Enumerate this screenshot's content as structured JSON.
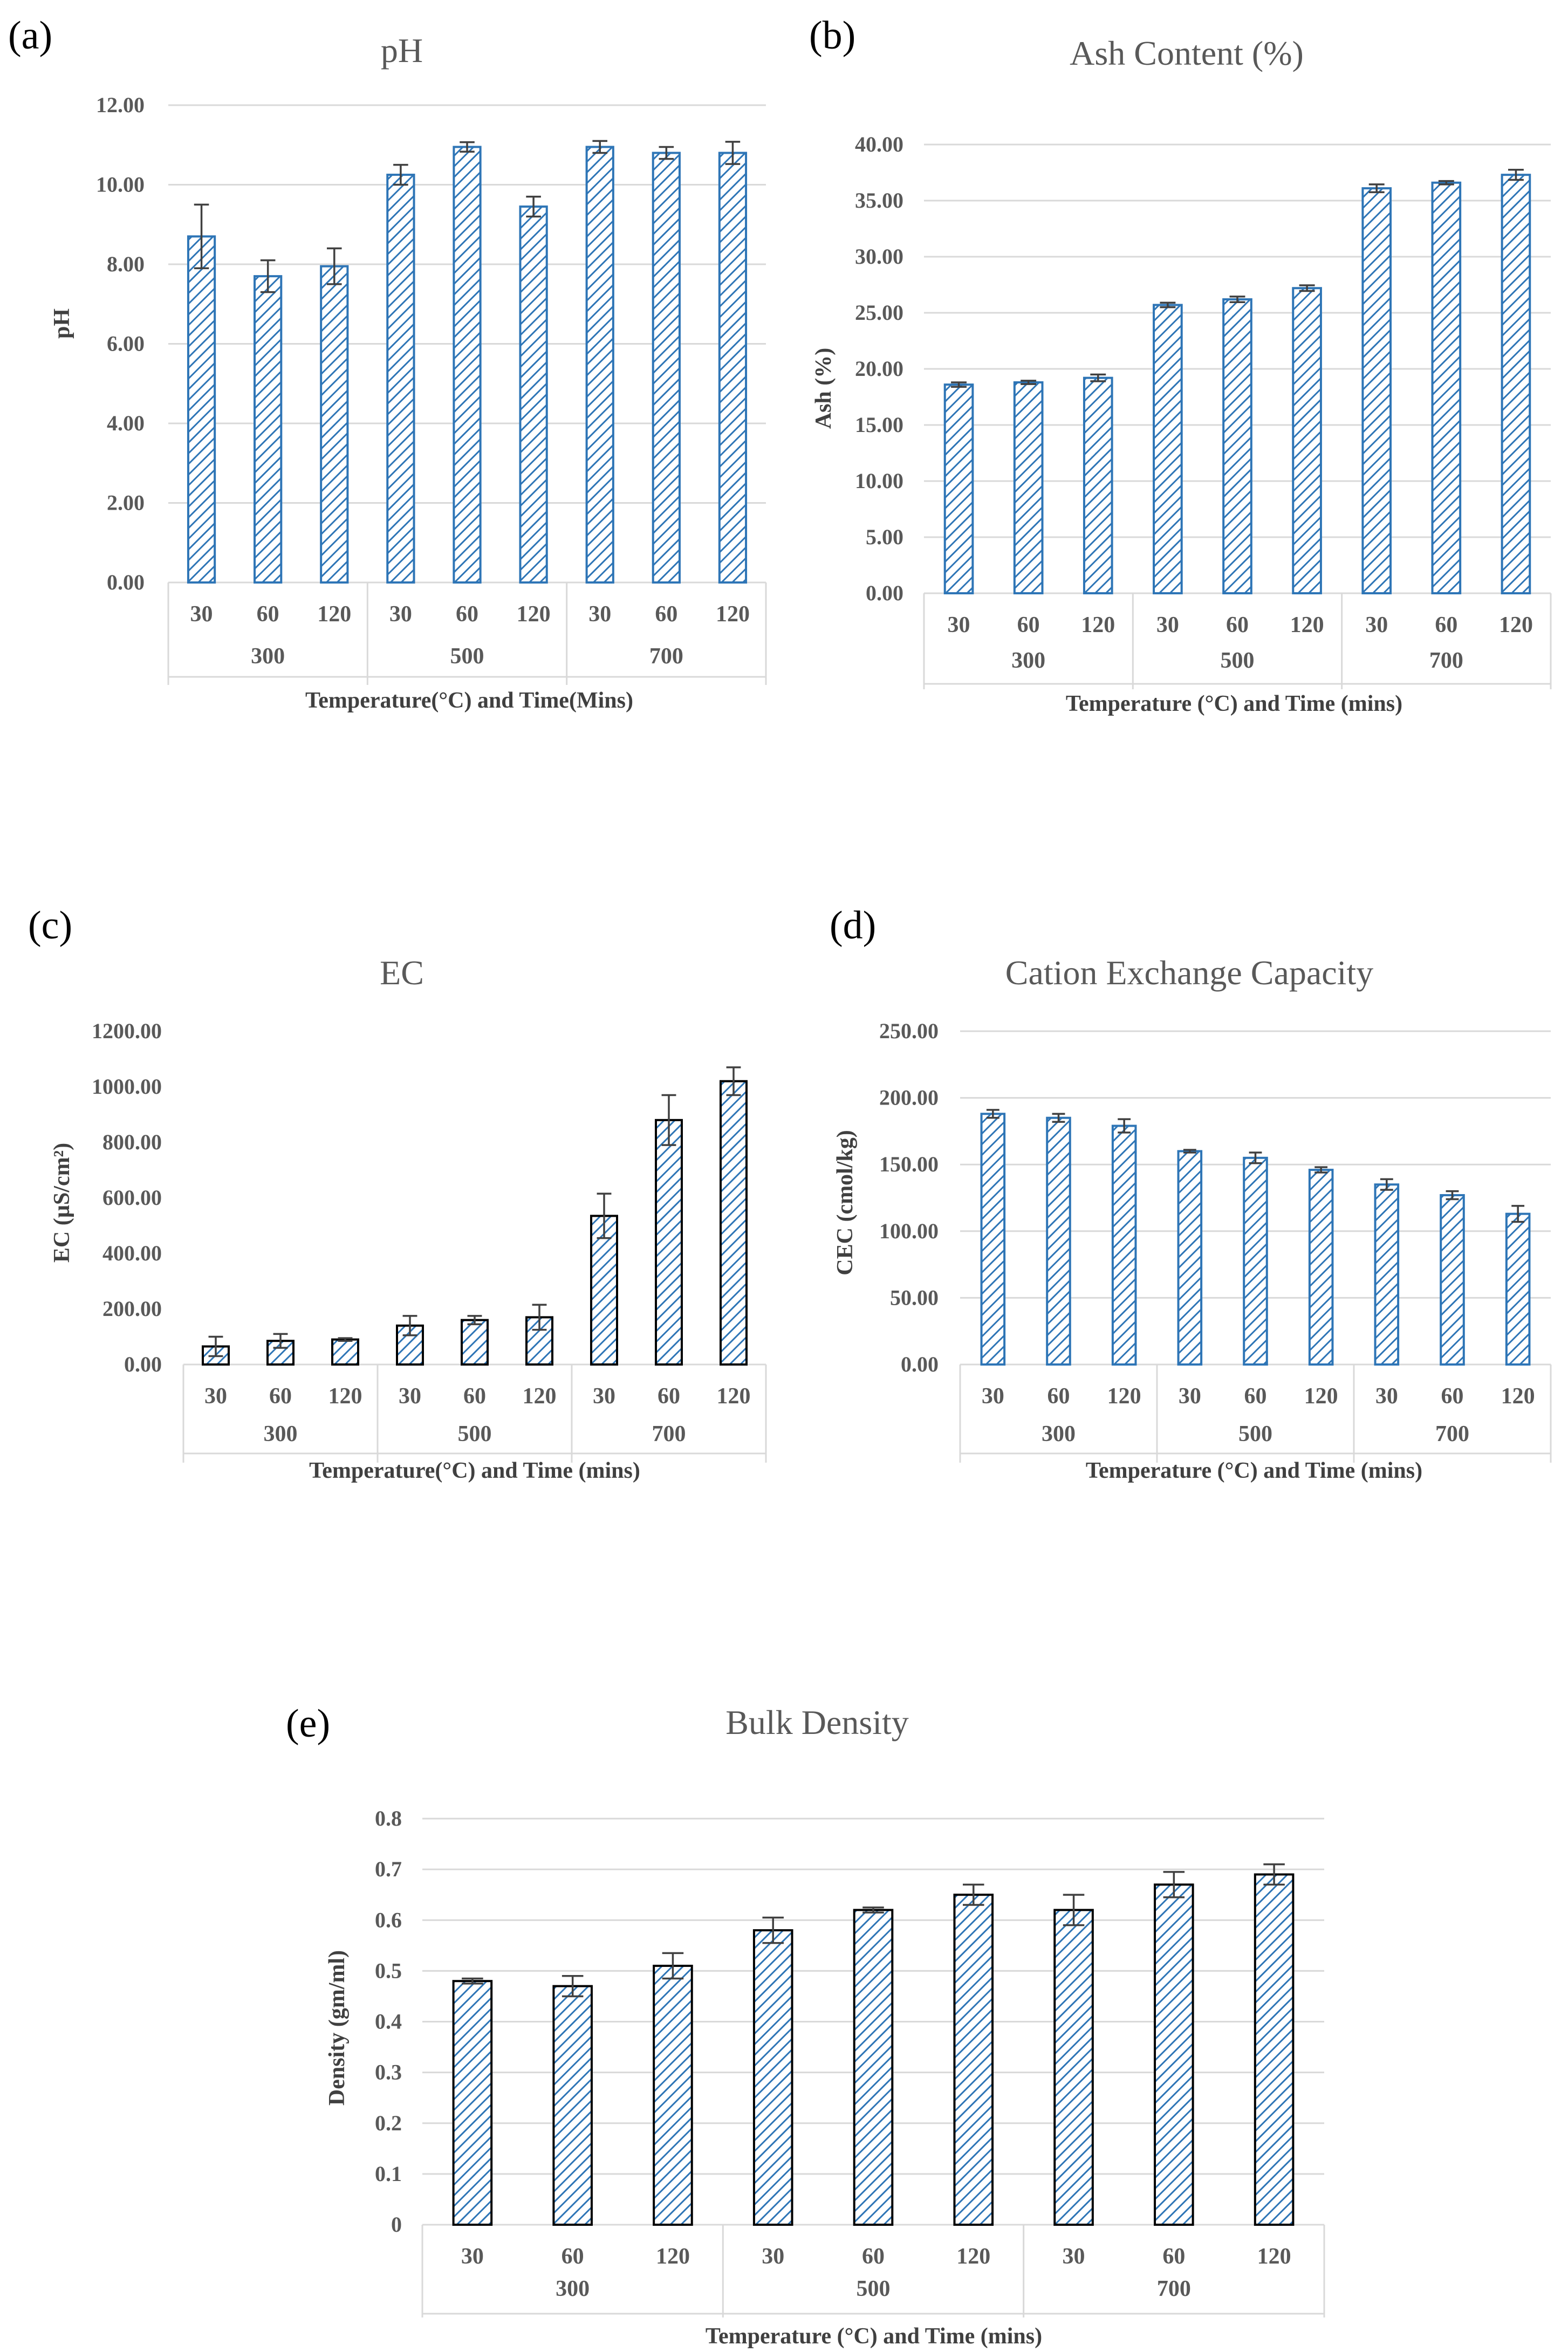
{
  "colors": {
    "bar_fill": "#ffffff",
    "bar_hatch": "#2e75b6",
    "bar_outline_blue": "#2e75b6",
    "bar_outline_black": "#000000",
    "gridline": "#d9d9d9",
    "text": "#595959"
  },
  "chart_data": [
    {
      "panel": "(a)",
      "type": "bar",
      "title": "pH",
      "ylabel": "pH",
      "xlabel": "Temperature(°C) and Time(Mins)",
      "ylim": [
        0,
        12
      ],
      "yticks": [
        "0.00",
        "2.00",
        "4.00",
        "6.00",
        "8.00",
        "10.00",
        "12.00"
      ],
      "groups": [
        "300",
        "500",
        "700"
      ],
      "categories": [
        "30",
        "60",
        "120",
        "30",
        "60",
        "120",
        "30",
        "60",
        "120"
      ],
      "values": [
        8.7,
        7.7,
        7.95,
        10.25,
        10.95,
        9.45,
        10.95,
        10.8,
        10.8
      ],
      "errors": [
        0.8,
        0.4,
        0.45,
        0.25,
        0.12,
        0.25,
        0.15,
        0.15,
        0.28
      ],
      "bar_outline": "blue",
      "grid": true
    },
    {
      "panel": "(b)",
      "type": "bar",
      "title": "Ash Content (%)",
      "ylabel": "Ash (%)",
      "xlabel": "Temperature (°C) and Time (mins)",
      "ylim": [
        0,
        40
      ],
      "yticks": [
        "0.00",
        "5.00",
        "10.00",
        "15.00",
        "20.00",
        "25.00",
        "30.00",
        "35.00",
        "40.00"
      ],
      "groups": [
        "300",
        "500",
        "700"
      ],
      "categories": [
        "30",
        "60",
        "120",
        "30",
        "60",
        "120",
        "30",
        "60",
        "120"
      ],
      "values": [
        18.6,
        18.8,
        19.2,
        25.7,
        26.2,
        27.2,
        36.1,
        36.6,
        37.3
      ],
      "errors": [
        0.2,
        0.15,
        0.3,
        0.2,
        0.25,
        0.25,
        0.35,
        0.15,
        0.45
      ],
      "bar_outline": "blue",
      "grid": true
    },
    {
      "panel": "(c)",
      "type": "bar",
      "title": "EC",
      "ylabel": "EC (µS/cm²)",
      "xlabel": "Temperature(°C) and Time (mins)",
      "ylim": [
        0,
        1200
      ],
      "yticks": [
        "0.00",
        "200.00",
        "400.00",
        "600.00",
        "800.00",
        "1000.00",
        "1200.00"
      ],
      "groups": [
        "300",
        "500",
        "700"
      ],
      "categories": [
        "30",
        "60",
        "120",
        "30",
        "60",
        "120",
        "30",
        "60",
        "120"
      ],
      "values": [
        65,
        85,
        90,
        140,
        160,
        170,
        535,
        880,
        1020
      ],
      "errors": [
        35,
        25,
        5,
        35,
        15,
        45,
        80,
        90,
        50
      ],
      "bar_outline": "black",
      "grid": false
    },
    {
      "panel": "(d)",
      "type": "bar",
      "title": "Cation Exchange Capacity",
      "ylabel": "CEC (cmol/kg)",
      "xlabel": "Temperature (°C) and Time (mins)",
      "ylim": [
        0,
        250
      ],
      "yticks": [
        "0.00",
        "50.00",
        "100.00",
        "150.00",
        "200.00",
        "250.00"
      ],
      "groups": [
        "300",
        "500",
        "700"
      ],
      "categories": [
        "30",
        "60",
        "120",
        "30",
        "60",
        "120",
        "30",
        "60",
        "120"
      ],
      "values": [
        188,
        185,
        179,
        160,
        155,
        146,
        135,
        127,
        113
      ],
      "errors": [
        3,
        3,
        5,
        1,
        4,
        2,
        4,
        3,
        6
      ],
      "bar_outline": "blue",
      "grid": true
    },
    {
      "panel": "(e)",
      "type": "bar",
      "title": "Bulk Density",
      "ylabel": "Density (gm/ml)",
      "xlabel": "Temperature (°C) and Time (mins)",
      "ylim": [
        0,
        0.8
      ],
      "yticks": [
        "0",
        "0.1",
        "0.2",
        "0.3",
        "0.4",
        "0.5",
        "0.6",
        "0.7",
        "0.8"
      ],
      "groups": [
        "300",
        "500",
        "700"
      ],
      "categories": [
        "30",
        "60",
        "120",
        "30",
        "60",
        "120",
        "30",
        "60",
        "120"
      ],
      "values": [
        0.48,
        0.47,
        0.51,
        0.58,
        0.62,
        0.65,
        0.62,
        0.67,
        0.69
      ],
      "errors": [
        0.005,
        0.02,
        0.025,
        0.025,
        0.005,
        0.02,
        0.03,
        0.025,
        0.02
      ],
      "bar_outline": "black",
      "grid": true
    }
  ]
}
